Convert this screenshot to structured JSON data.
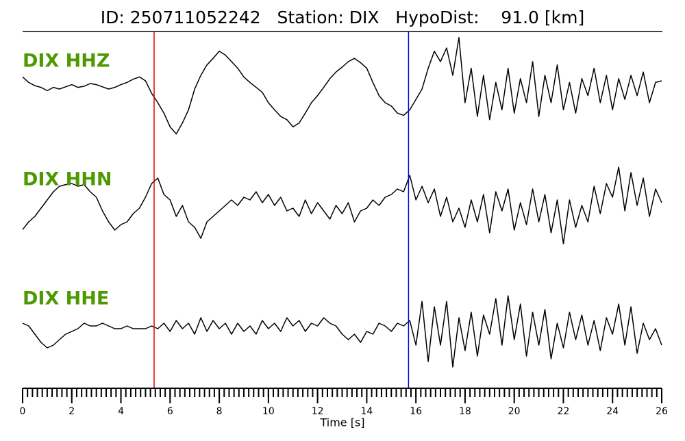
{
  "chart_data": {
    "type": "line",
    "title": "ID: 250711052242   Station: DIX   HypoDist:    91.0 [km]",
    "xlabel": "Time [s]",
    "xlim": [
      0,
      26
    ],
    "xticks": [
      0,
      2,
      4,
      6,
      8,
      10,
      12,
      14,
      16,
      18,
      20,
      22,
      24,
      26
    ],
    "minor_tick_interval": 0.2,
    "label_color": "#4c9a00",
    "markers": [
      {
        "x": 5.35,
        "color": "#e00000"
      },
      {
        "x": 15.7,
        "color": "#0000e0"
      }
    ],
    "x": [
      0,
      0.25,
      0.5,
      0.75,
      1,
      1.25,
      1.5,
      1.75,
      2,
      2.25,
      2.5,
      2.75,
      3,
      3.25,
      3.5,
      3.75,
      4,
      4.25,
      4.5,
      4.75,
      5,
      5.25,
      5.5,
      5.75,
      6,
      6.25,
      6.5,
      6.75,
      7,
      7.25,
      7.5,
      7.75,
      8,
      8.25,
      8.5,
      8.75,
      9,
      9.25,
      9.5,
      9.75,
      10,
      10.25,
      10.5,
      10.75,
      11,
      11.25,
      11.5,
      11.75,
      12,
      12.25,
      12.5,
      12.75,
      13,
      13.25,
      13.5,
      13.75,
      14,
      14.25,
      14.5,
      14.75,
      15,
      15.25,
      15.5,
      15.75,
      16,
      16.25,
      16.5,
      16.75,
      17,
      17.25,
      17.5,
      17.75,
      18,
      18.25,
      18.5,
      18.75,
      19,
      19.25,
      19.5,
      19.75,
      20,
      20.25,
      20.5,
      20.75,
      21,
      21.25,
      21.5,
      21.75,
      22,
      22.25,
      22.5,
      22.75,
      23,
      23.25,
      23.5,
      23.75,
      24,
      24.25,
      24.5,
      24.75,
      25,
      25.25,
      25.5,
      25.75,
      26
    ],
    "series": [
      {
        "name": "DIX HHZ",
        "color": "#000000",
        "values": [
          0.22,
          0.12,
          0.06,
          0.03,
          -0.03,
          0.03,
          0,
          0.04,
          0.08,
          0.03,
          0.05,
          0.1,
          0.08,
          0.04,
          0,
          0.03,
          0.08,
          0.12,
          0.18,
          0.22,
          0.15,
          -0.08,
          -0.25,
          -0.44,
          -0.69,
          -0.82,
          -0.62,
          -0.38,
          0,
          0.25,
          0.44,
          0.56,
          0.69,
          0.62,
          0.5,
          0.38,
          0.22,
          0.12,
          0.03,
          -0.06,
          -0.25,
          -0.38,
          -0.5,
          -0.56,
          -0.69,
          -0.62,
          -0.44,
          -0.25,
          -0.12,
          0.03,
          0.19,
          0.31,
          0.4,
          0.5,
          0.56,
          0.48,
          0.38,
          0.12,
          -0.12,
          -0.25,
          -0.31,
          -0.44,
          -0.48,
          -0.38,
          -0.19,
          0,
          0.38,
          0.69,
          0.5,
          0.75,
          0.25,
          0.94,
          -0.25,
          0.38,
          -0.5,
          0.25,
          -0.56,
          0.12,
          -0.38,
          0.38,
          -0.44,
          0.19,
          -0.25,
          0.5,
          -0.5,
          0.25,
          -0.25,
          0.44,
          -0.38,
          0.12,
          -0.44,
          0.19,
          -0.12,
          0.38,
          -0.25,
          0.25,
          -0.38,
          0.19,
          -0.19,
          0.25,
          -0.12,
          0.31,
          -0.25,
          0.12,
          0.15
        ]
      },
      {
        "name": "DIX HHN",
        "color": "#000000",
        "values": [
          -0.44,
          -0.3,
          -0.2,
          -0.05,
          0.1,
          0.25,
          0.35,
          0.38,
          0.4,
          0.35,
          0.38,
          0.25,
          0.15,
          -0.1,
          -0.3,
          -0.45,
          -0.35,
          -0.3,
          -0.15,
          -0.05,
          0.15,
          0.4,
          0.5,
          0.2,
          0.1,
          -0.2,
          0,
          -0.3,
          -0.4,
          -0.6,
          -0.3,
          -0.2,
          -0.1,
          0,
          0.1,
          0,
          0.15,
          0.1,
          0.25,
          0.05,
          0.2,
          0,
          0.15,
          -0.1,
          -0.05,
          -0.2,
          0.1,
          -0.15,
          0.05,
          -0.1,
          -0.25,
          0,
          -0.15,
          0.05,
          -0.3,
          -0.1,
          -0.05,
          0.1,
          0,
          0.15,
          0.2,
          0.3,
          0.25,
          0.55,
          0.1,
          0.35,
          0.05,
          0.3,
          -0.2,
          0.15,
          -0.3,
          -0.05,
          -0.4,
          0.1,
          -0.3,
          0.2,
          -0.5,
          0.25,
          -0.1,
          0.3,
          -0.45,
          0.05,
          -0.35,
          0.3,
          -0.3,
          0.2,
          -0.5,
          0.1,
          -0.7,
          0.1,
          -0.4,
          0,
          -0.3,
          0.35,
          -0.15,
          0.4,
          0.15,
          0.7,
          -0.1,
          0.6,
          0,
          0.5,
          -0.2,
          0.3,
          0.05
        ]
      },
      {
        "name": "DIX HHE",
        "color": "#000000",
        "values": [
          0.1,
          0.05,
          -0.1,
          -0.25,
          -0.35,
          -0.3,
          -0.2,
          -0.1,
          -0.05,
          0,
          0.1,
          0.05,
          0.05,
          0.1,
          0.05,
          0,
          0,
          0.05,
          0,
          0,
          0,
          0.05,
          0,
          0.1,
          -0.05,
          0.15,
          0,
          0.1,
          -0.1,
          0.2,
          -0.05,
          0.15,
          0,
          0.1,
          -0.1,
          0.1,
          -0.05,
          0.05,
          -0.1,
          0.15,
          0,
          0.1,
          -0.05,
          0.2,
          0.05,
          0.15,
          -0.05,
          0.1,
          0.05,
          0.2,
          0.1,
          0.05,
          -0.1,
          -0.2,
          -0.1,
          -0.25,
          -0.05,
          -0.1,
          0.1,
          0.05,
          -0.05,
          0.1,
          0.05,
          0.15,
          -0.3,
          0.5,
          -0.6,
          0.4,
          -0.3,
          0.5,
          -0.7,
          0.2,
          -0.4,
          0.3,
          -0.5,
          0.25,
          -0.1,
          0.55,
          -0.3,
          0.6,
          -0.2,
          0.45,
          -0.5,
          0.3,
          -0.3,
          0.35,
          -0.55,
          0.1,
          -0.35,
          0.3,
          -0.2,
          0.25,
          -0.3,
          0.15,
          -0.4,
          0.2,
          -0.1,
          0.45,
          -0.3,
          0.4,
          -0.45,
          0.1,
          -0.2,
          0,
          -0.3
        ]
      }
    ]
  }
}
